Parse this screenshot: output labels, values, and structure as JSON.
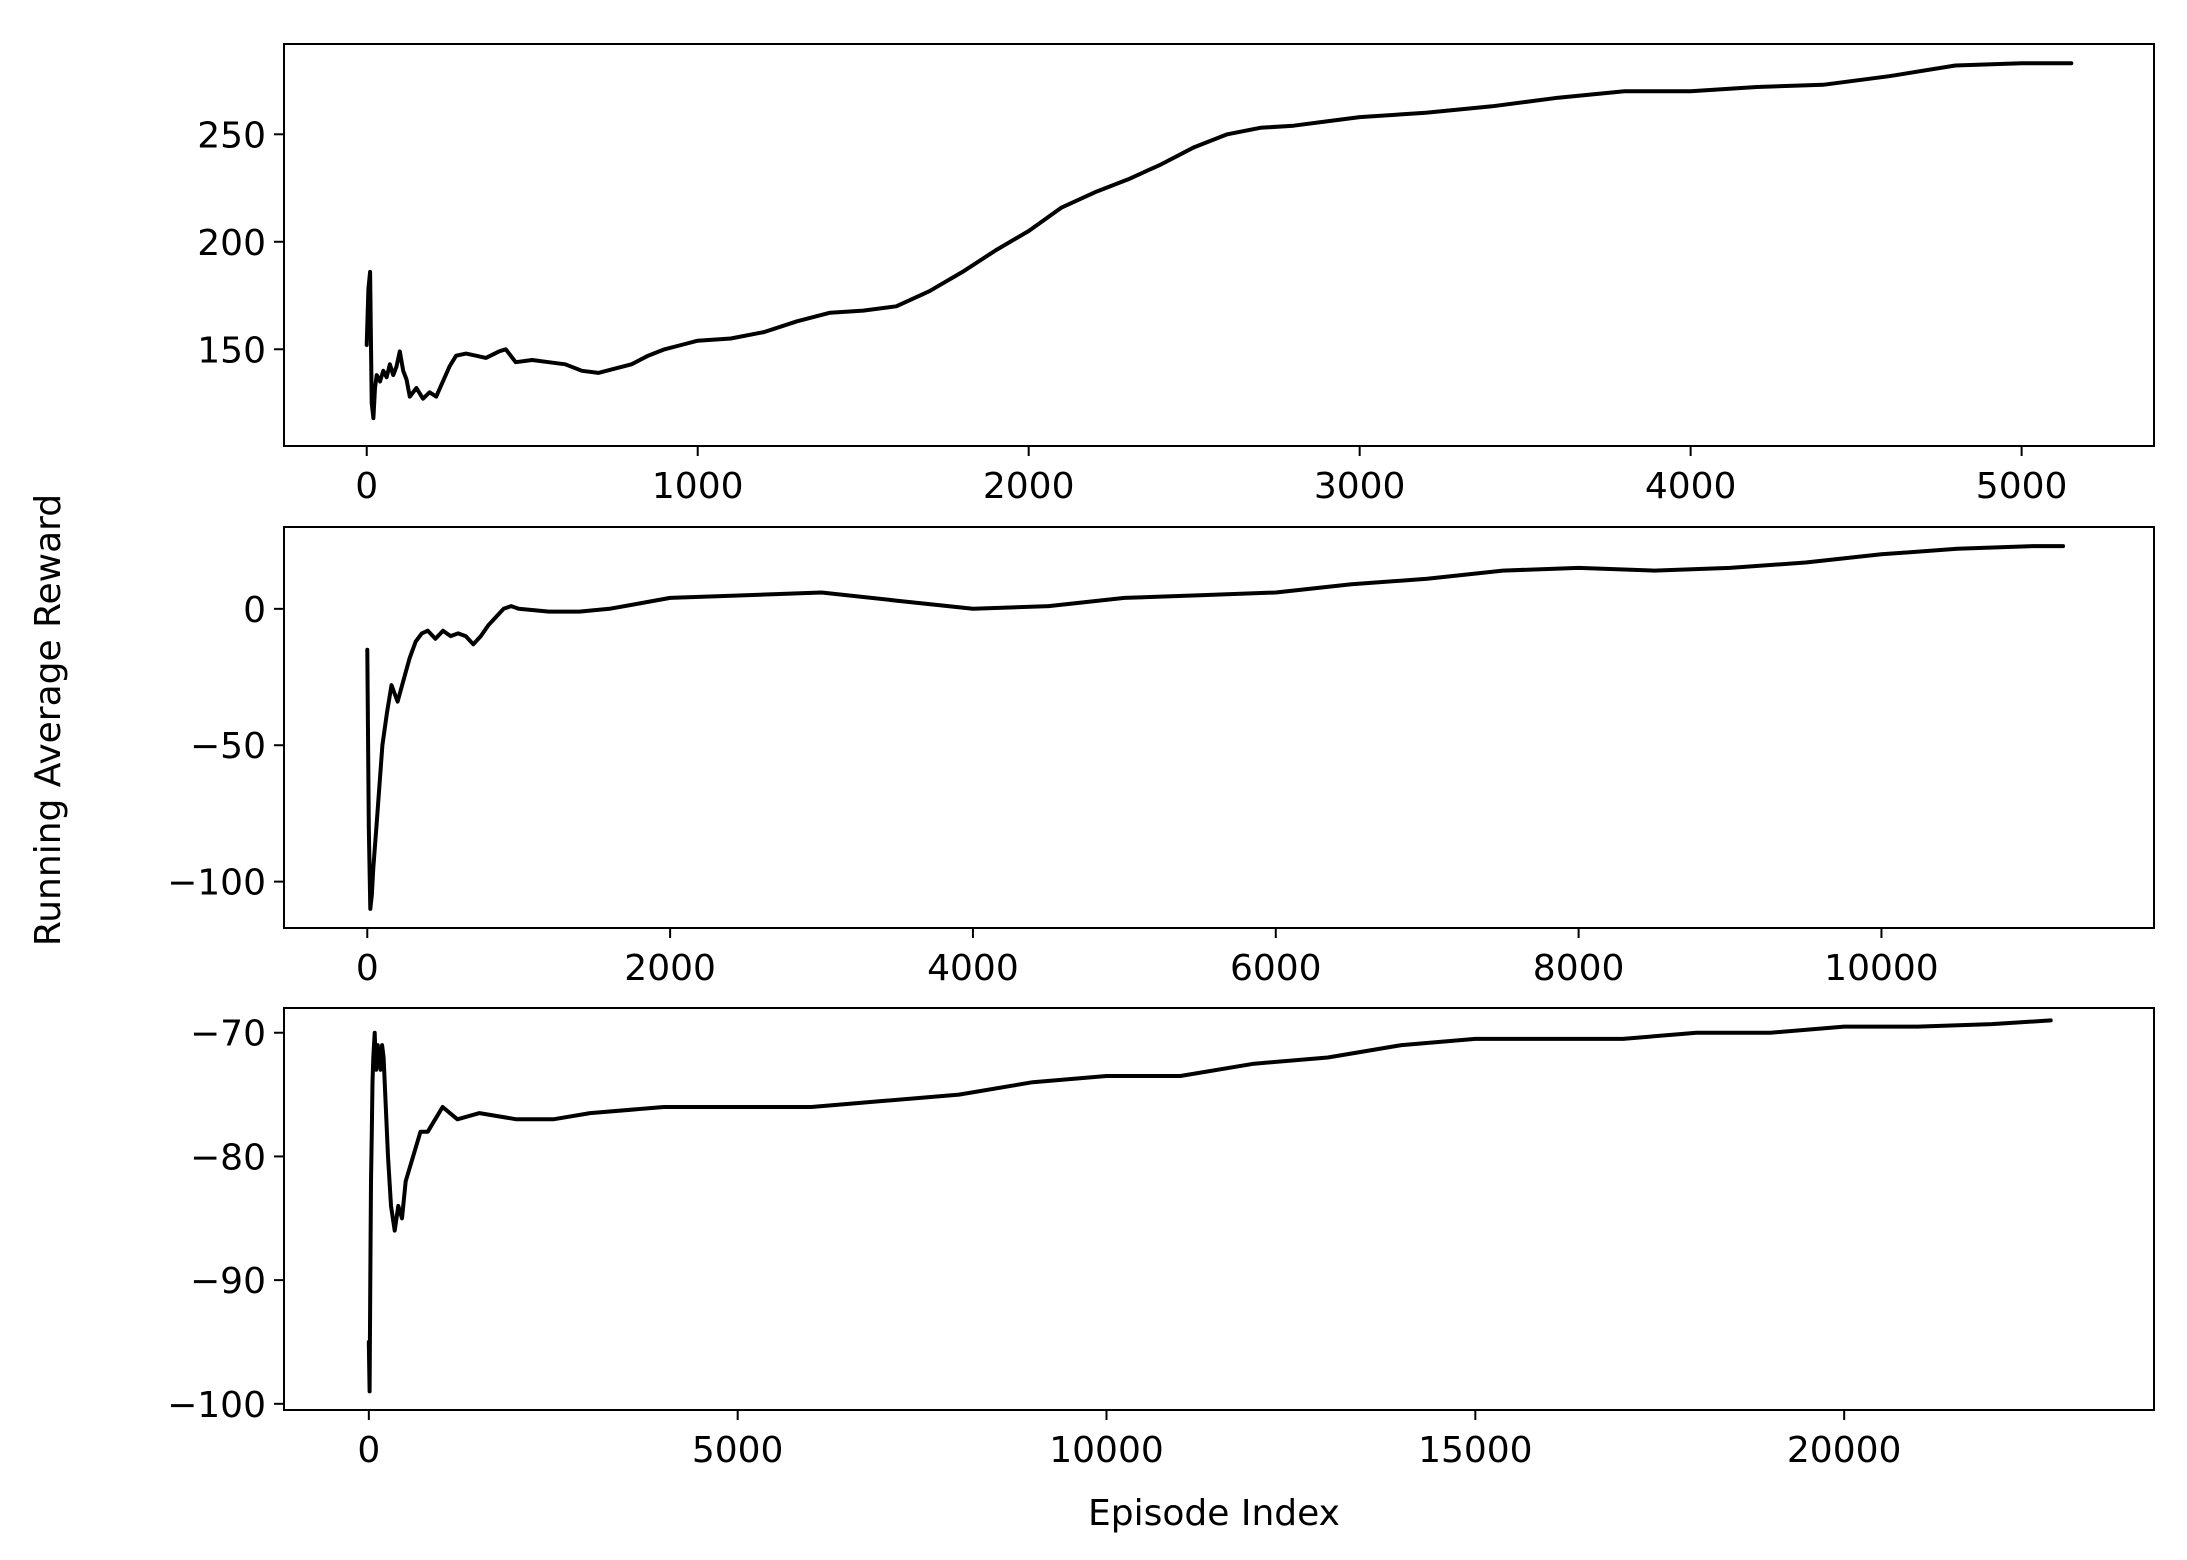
{
  "figure": {
    "ylabel": "Running Average Reward",
    "xlabel": "Episode Index",
    "line_color": "#000000"
  },
  "chart_data": [
    {
      "type": "line",
      "xlim": [
        -250,
        5400
      ],
      "ylim": [
        105,
        292
      ],
      "xticks": [
        0,
        1000,
        2000,
        3000,
        4000,
        5000
      ],
      "xtick_labels": [
        "0",
        "1000",
        "2000",
        "3000",
        "4000",
        "5000"
      ],
      "yticks": [
        150,
        200,
        250
      ],
      "ytick_labels": [
        "150",
        "200",
        "250"
      ],
      "grid": false,
      "series": [
        {
          "x": [
            0,
            5,
            10,
            15,
            20,
            25,
            30,
            40,
            50,
            60,
            70,
            80,
            90,
            100,
            110,
            120,
            130,
            150,
            170,
            190,
            210,
            230,
            250,
            270,
            300,
            330,
            360,
            400,
            420,
            450,
            500,
            550,
            600,
            650,
            700,
            750,
            800,
            850,
            900,
            950,
            1000,
            1100,
            1200,
            1300,
            1400,
            1500,
            1600,
            1700,
            1800,
            1900,
            2000,
            2100,
            2200,
            2300,
            2400,
            2500,
            2600,
            2700,
            2800,
            2900,
            3000,
            3200,
            3400,
            3500,
            3600,
            3800,
            4000,
            4200,
            4400,
            4600,
            4800,
            5000,
            5150
          ],
          "y": [
            152,
            178,
            186,
            125,
            118,
            132,
            138,
            135,
            140,
            137,
            143,
            138,
            142,
            149,
            140,
            136,
            128,
            132,
            127,
            130,
            128,
            135,
            142,
            147,
            148,
            147,
            146,
            149,
            150,
            144,
            145,
            144,
            143,
            140,
            139,
            141,
            143,
            147,
            150,
            152,
            154,
            155,
            158,
            163,
            167,
            168,
            170,
            177,
            186,
            196,
            205,
            216,
            223,
            229,
            236,
            244,
            250,
            253,
            254,
            256,
            258,
            260,
            263,
            265,
            267,
            270,
            270,
            272,
            273,
            277,
            282,
            283,
            283
          ]
        }
      ]
    },
    {
      "type": "line",
      "xlim": [
        -550,
        11800
      ],
      "ylim": [
        -117,
        30
      ],
      "xticks": [
        0,
        2000,
        4000,
        6000,
        8000,
        10000
      ],
      "xtick_labels": [
        "0",
        "2000",
        "4000",
        "6000",
        "8000",
        "10000"
      ],
      "yticks": [
        -100,
        -50,
        0
      ],
      "ytick_labels": [
        "−100",
        "−50",
        "0"
      ],
      "grid": false,
      "series": [
        {
          "x": [
            0,
            10,
            20,
            30,
            40,
            60,
            80,
            100,
            130,
            160,
            200,
            240,
            280,
            320,
            360,
            400,
            450,
            500,
            550,
            600,
            650,
            700,
            750,
            800,
            850,
            900,
            950,
            1000,
            1200,
            1400,
            1600,
            1800,
            2000,
            2500,
            3000,
            3500,
            4000,
            4500,
            5000,
            5500,
            6000,
            6500,
            7000,
            7500,
            8000,
            8500,
            9000,
            9500,
            10000,
            10500,
            11000,
            11200
          ],
          "y": [
            -15,
            -80,
            -110,
            -105,
            -95,
            -80,
            -65,
            -50,
            -38,
            -28,
            -34,
            -26,
            -18,
            -12,
            -9,
            -8,
            -11,
            -8,
            -10,
            -9,
            -10,
            -13,
            -10,
            -6,
            -3,
            0,
            1,
            0,
            -1,
            -1,
            0,
            2,
            4,
            5,
            6,
            3,
            0,
            1,
            4,
            5,
            6,
            9,
            11,
            14,
            15,
            14,
            15,
            17,
            20,
            22,
            23,
            23
          ]
        }
      ]
    },
    {
      "type": "line",
      "xlim": [
        -1150,
        24200
      ],
      "ylim": [
        -100.5,
        -68
      ],
      "xticks": [
        0,
        5000,
        10000,
        15000,
        20000
      ],
      "xtick_labels": [
        "0",
        "5000",
        "10000",
        "15000",
        "20000"
      ],
      "yticks": [
        -100,
        -90,
        -80,
        -70
      ],
      "ytick_labels": [
        "−100",
        "−90",
        "−80",
        "−70"
      ],
      "grid": false,
      "series": [
        {
          "x": [
            0,
            10,
            20,
            30,
            40,
            50,
            60,
            70,
            80,
            90,
            100,
            120,
            140,
            160,
            180,
            200,
            230,
            260,
            300,
            350,
            400,
            450,
            500,
            600,
            700,
            800,
            900,
            1000,
            1200,
            1500,
            2000,
            2500,
            3000,
            4000,
            5000,
            6000,
            7000,
            8000,
            9000,
            10000,
            11000,
            12000,
            13000,
            14000,
            15000,
            16000,
            17000,
            18000,
            19000,
            20000,
            21000,
            22000,
            22800
          ],
          "y": [
            -95,
            -99,
            -90,
            -82,
            -78,
            -74,
            -72,
            -71,
            -70,
            -72,
            -73,
            -71,
            -72,
            -73,
            -71,
            -72,
            -76,
            -80,
            -84,
            -86,
            -84,
            -85,
            -82,
            -80,
            -78,
            -78,
            -77,
            -76,
            -77,
            -76.5,
            -77,
            -77,
            -76.5,
            -76,
            -76,
            -76,
            -75.5,
            -75,
            -74,
            -73.5,
            -73.5,
            -72.5,
            -72,
            -71,
            -70.5,
            -70.5,
            -70.5,
            -70,
            -70,
            -69.5,
            -69.5,
            -69.3,
            -69
          ]
        }
      ]
    }
  ]
}
